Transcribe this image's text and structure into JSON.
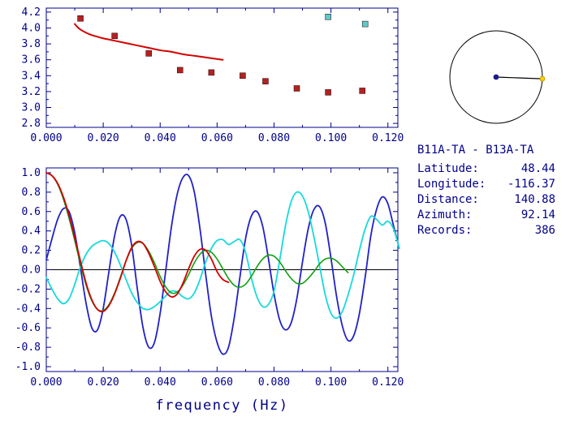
{
  "colors": {
    "axis": "#00008b",
    "text": "#00008b",
    "background": "#ffffff",
    "zero_line": "#000000",
    "dial_circle": "#000000",
    "dial_line": "#000000",
    "dial_center_dot": "#1c1c8a",
    "dial_end_dot": "#ffcc00"
  },
  "info_panel": {
    "title": "B11A-TA - B13A-TA",
    "fields": [
      {
        "label": "Latitude:",
        "value": "48.44"
      },
      {
        "label": "Longitude:",
        "value": "-116.37"
      },
      {
        "label": "Distance:",
        "value": "140.88"
      },
      {
        "label": "Azimuth:",
        "value": "92.14"
      },
      {
        "label": "Records:",
        "value": "386"
      }
    ]
  },
  "azimuth_dial": {
    "azimuth_deg": 92.14
  },
  "chart_data": [
    {
      "type": "scatter",
      "title": "",
      "xlabel": "",
      "ylabel": "",
      "xlim": [
        0,
        0.1235
      ],
      "ylim": [
        2.75,
        4.25
      ],
      "grid": false,
      "zero_line": false,
      "xticks": {
        "values": [
          0,
          0.02,
          0.04,
          0.06,
          0.08,
          0.1,
          0.12
        ],
        "labels": [
          "0.000",
          "0.020",
          "0.040",
          "0.060",
          "0.080",
          "0.100",
          "0.120"
        ]
      },
      "yticks": {
        "values": [
          2.8,
          3.0,
          3.2,
          3.4,
          3.6,
          3.8,
          4.0,
          4.2
        ],
        "labels": [
          "2.8",
          "3.0",
          "3.2",
          "3.4",
          "3.6",
          "3.8",
          "4.0",
          "4.2"
        ]
      },
      "series": [
        {
          "name": "model-dispersion-curve",
          "kind": "line",
          "color": "#d40000",
          "width": 2,
          "x": [
            0.01,
            0.011,
            0.012,
            0.014,
            0.016,
            0.018,
            0.02,
            0.024,
            0.028,
            0.032,
            0.036,
            0.04,
            0.044,
            0.048,
            0.052,
            0.056,
            0.06,
            0.062
          ],
          "y": [
            4.05,
            4.01,
            3.98,
            3.94,
            3.91,
            3.89,
            3.87,
            3.84,
            3.81,
            3.78,
            3.75,
            3.72,
            3.7,
            3.67,
            3.65,
            3.63,
            3.61,
            3.6
          ]
        },
        {
          "name": "phase-velocity-picks",
          "kind": "scatter",
          "marker": "square",
          "color": "#b22222",
          "x": [
            0.012,
            0.024,
            0.036,
            0.047,
            0.058,
            0.069,
            0.077,
            0.088,
            0.099,
            0.111
          ],
          "y": [
            4.12,
            3.9,
            3.68,
            3.47,
            3.44,
            3.4,
            3.33,
            3.24,
            3.19,
            3.21
          ]
        },
        {
          "name": "rejected-picks",
          "kind": "scatter",
          "marker": "square",
          "color": "#5fc8c8",
          "x": [
            0.099,
            0.112
          ],
          "y": [
            4.14,
            4.05
          ]
        }
      ]
    },
    {
      "type": "line",
      "title": "",
      "xlabel": "frequency (Hz)",
      "ylabel": "",
      "xlim": [
        0,
        0.1235
      ],
      "ylim": [
        -1.05,
        1.05
      ],
      "grid": false,
      "zero_line": true,
      "xticks": {
        "values": [
          0,
          0.02,
          0.04,
          0.06,
          0.08,
          0.1,
          0.12
        ],
        "labels": [
          "0.000",
          "0.020",
          "0.040",
          "0.060",
          "0.080",
          "0.100",
          "0.120"
        ]
      },
      "yticks": {
        "values": [
          1.0,
          0.8,
          0.6,
          0.4,
          0.2,
          0.0,
          -0.2,
          -0.4,
          -0.6,
          -0.8,
          -1.0
        ],
        "labels": [
          "1.0",
          "0.8",
          "0.6",
          "0.4",
          "0.2",
          "0.0",
          "-0.2",
          "-0.4",
          "-0.6",
          "-0.8",
          "-1.0"
        ]
      },
      "series": [
        {
          "name": "cross-spectrum-blue",
          "kind": "line",
          "color": "#2121c8",
          "width": 1.8,
          "x0": 0,
          "dx": 0.002,
          "y": [
            0.1,
            0.32,
            0.52,
            0.63,
            0.6,
            0.38,
            0.02,
            -0.35,
            -0.6,
            -0.62,
            -0.4,
            -0.02,
            0.35,
            0.55,
            0.52,
            0.25,
            -0.2,
            -0.6,
            -0.8,
            -0.75,
            -0.45,
            0.0,
            0.45,
            0.78,
            0.95,
            0.97,
            0.8,
            0.42,
            -0.05,
            -0.48,
            -0.75,
            -0.87,
            -0.8,
            -0.5,
            -0.08,
            0.32,
            0.55,
            0.6,
            0.45,
            0.12,
            -0.25,
            -0.52,
            -0.62,
            -0.55,
            -0.3,
            0.08,
            0.42,
            0.62,
            0.65,
            0.48,
            0.12,
            -0.28,
            -0.58,
            -0.73,
            -0.68,
            -0.45,
            -0.08,
            0.35,
            0.62,
            0.75,
            0.68,
            0.45,
            0.22
          ]
        },
        {
          "name": "cross-spectrum-smoothed-cyan",
          "kind": "line",
          "color": "#17dada",
          "width": 1.8,
          "x0": 0,
          "dx": 0.002,
          "y": [
            -0.08,
            -0.2,
            -0.3,
            -0.35,
            -0.3,
            -0.15,
            0.03,
            0.16,
            0.24,
            0.28,
            0.3,
            0.27,
            0.18,
            0.05,
            -0.1,
            -0.24,
            -0.34,
            -0.4,
            -0.41,
            -0.38,
            -0.33,
            -0.27,
            -0.22,
            -0.23,
            -0.28,
            -0.3,
            -0.24,
            -0.1,
            0.08,
            0.22,
            0.3,
            0.31,
            0.26,
            0.29,
            0.31,
            0.18,
            -0.08,
            -0.28,
            -0.38,
            -0.36,
            -0.22,
            0.1,
            0.45,
            0.7,
            0.8,
            0.76,
            0.6,
            0.34,
            0.04,
            -0.26,
            -0.45,
            -0.5,
            -0.43,
            -0.26,
            -0.05,
            0.2,
            0.42,
            0.55,
            0.52,
            0.46,
            0.5,
            0.42,
            0.22
          ]
        },
        {
          "name": "bessel-fit-green",
          "kind": "line",
          "color": "#0fa00f",
          "width": 1.6,
          "x0": 0,
          "dx": 0.002,
          "y": [
            1.0,
            0.97,
            0.88,
            0.73,
            0.53,
            0.3,
            0.06,
            -0.16,
            -0.32,
            -0.41,
            -0.42,
            -0.36,
            -0.24,
            -0.08,
            0.09,
            0.22,
            0.28,
            0.27,
            0.19,
            0.07,
            -0.07,
            -0.18,
            -0.24,
            -0.23,
            -0.16,
            -0.05,
            0.07,
            0.16,
            0.2,
            0.18,
            0.11,
            0.01,
            -0.09,
            -0.16,
            -0.18,
            -0.15,
            -0.07,
            0.03,
            0.11,
            0.15,
            0.14,
            0.08,
            -0.01,
            -0.09,
            -0.14,
            -0.14,
            -0.09,
            -0.02,
            0.06,
            0.11,
            0.12,
            0.09,
            0.03,
            -0.03
          ]
        },
        {
          "name": "bessel-model-red",
          "kind": "line",
          "color": "#d40000",
          "width": 1.8,
          "x0": 0,
          "dx": 0.002,
          "y": [
            1.0,
            0.97,
            0.89,
            0.75,
            0.56,
            0.33,
            0.09,
            -0.14,
            -0.31,
            -0.41,
            -0.43,
            -0.37,
            -0.25,
            -0.09,
            0.09,
            0.23,
            0.29,
            0.27,
            0.17,
            0.03,
            -0.12,
            -0.23,
            -0.28,
            -0.25,
            -0.14,
            0.01,
            0.14,
            0.21,
            0.2,
            0.11,
            -0.02,
            -0.1,
            -0.13
          ]
        }
      ]
    }
  ]
}
